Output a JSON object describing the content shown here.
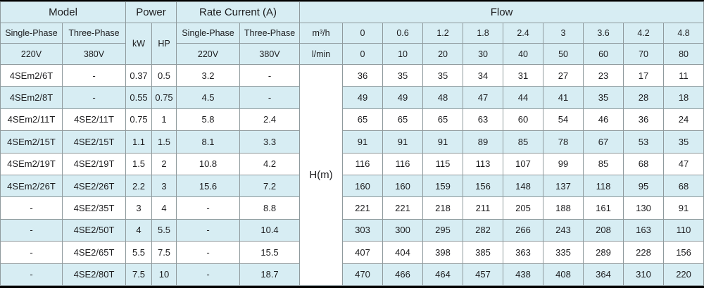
{
  "colors": {
    "header_bg": "#d7edf3",
    "alt_row_bg": "#d7edf3",
    "row_bg": "#ffffff",
    "grid_line": "#8f9a9d",
    "outer_border": "#000000",
    "text": "#1d1d1f"
  },
  "table": {
    "group_headers": {
      "model": "Model",
      "power": "Power",
      "rate_current": "Rate Current (A)",
      "flow": "Flow"
    },
    "sub_headers": {
      "model_single_phase": "Single-Phase",
      "model_three_phase": "Three-Phase",
      "kw": "kW",
      "hp": "HP",
      "rc_single_phase": "Single-Phase",
      "rc_three_phase": "Three-Phase",
      "flow_unit_m3h": "m³/h",
      "flow_unit_lmin": "l/min",
      "model_single_voltage": "220V",
      "model_three_voltage": "380V",
      "rc_single_voltage": "220V",
      "rc_three_voltage": "380V",
      "head_label": "H(m)"
    },
    "flow_m3h": [
      "0",
      "0.6",
      "1.2",
      "1.8",
      "2.4",
      "3",
      "3.6",
      "4.2",
      "4.8"
    ],
    "flow_lmin": [
      "0",
      "10",
      "20",
      "30",
      "40",
      "50",
      "60",
      "70",
      "80"
    ],
    "rows": [
      {
        "model_single": "4SEm2/6T",
        "model_three": "-",
        "kw": "0.37",
        "hp": "0.5",
        "rc_single": "3.2",
        "rc_three": "-",
        "head": [
          "36",
          "35",
          "35",
          "34",
          "31",
          "27",
          "23",
          "17",
          "11"
        ]
      },
      {
        "model_single": "4SEm2/8T",
        "model_three": "-",
        "kw": "0.55",
        "hp": "0.75",
        "rc_single": "4.5",
        "rc_three": "-",
        "head": [
          "49",
          "49",
          "48",
          "47",
          "44",
          "41",
          "35",
          "28",
          "18"
        ]
      },
      {
        "model_single": "4SEm2/11T",
        "model_three": "4SE2/11T",
        "kw": "0.75",
        "hp": "1",
        "rc_single": "5.8",
        "rc_three": "2.4",
        "head": [
          "65",
          "65",
          "65",
          "63",
          "60",
          "54",
          "46",
          "36",
          "24"
        ]
      },
      {
        "model_single": "4SEm2/15T",
        "model_three": "4SE2/15T",
        "kw": "1.1",
        "hp": "1.5",
        "rc_single": "8.1",
        "rc_three": "3.3",
        "head": [
          "91",
          "91",
          "91",
          "89",
          "85",
          "78",
          "67",
          "53",
          "35"
        ]
      },
      {
        "model_single": "4SEm2/19T",
        "model_three": "4SE2/19T",
        "kw": "1.5",
        "hp": "2",
        "rc_single": "10.8",
        "rc_three": "4.2",
        "head": [
          "116",
          "116",
          "115",
          "113",
          "107",
          "99",
          "85",
          "68",
          "47"
        ]
      },
      {
        "model_single": "4SEm2/26T",
        "model_three": "4SE2/26T",
        "kw": "2.2",
        "hp": "3",
        "rc_single": "15.6",
        "rc_three": "7.2",
        "head": [
          "160",
          "160",
          "159",
          "156",
          "148",
          "137",
          "118",
          "95",
          "68"
        ]
      },
      {
        "model_single": "-",
        "model_three": "4SE2/35T",
        "kw": "3",
        "hp": "4",
        "rc_single": "-",
        "rc_three": "8.8",
        "head": [
          "221",
          "221",
          "218",
          "211",
          "205",
          "188",
          "161",
          "130",
          "91"
        ]
      },
      {
        "model_single": "-",
        "model_three": "4SE2/50T",
        "kw": "4",
        "hp": "5.5",
        "rc_single": "-",
        "rc_three": "10.4",
        "head": [
          "303",
          "300",
          "295",
          "282",
          "266",
          "243",
          "208",
          "163",
          "110"
        ]
      },
      {
        "model_single": "-",
        "model_three": "4SE2/65T",
        "kw": "5.5",
        "hp": "7.5",
        "rc_single": "-",
        "rc_three": "15.5",
        "head": [
          "407",
          "404",
          "398",
          "385",
          "363",
          "335",
          "289",
          "228",
          "156"
        ]
      },
      {
        "model_single": "-",
        "model_three": "4SE2/80T",
        "kw": "7.5",
        "hp": "10",
        "rc_single": "-",
        "rc_three": "18.7",
        "head": [
          "470",
          "466",
          "464",
          "457",
          "438",
          "408",
          "364",
          "310",
          "220"
        ]
      }
    ]
  }
}
